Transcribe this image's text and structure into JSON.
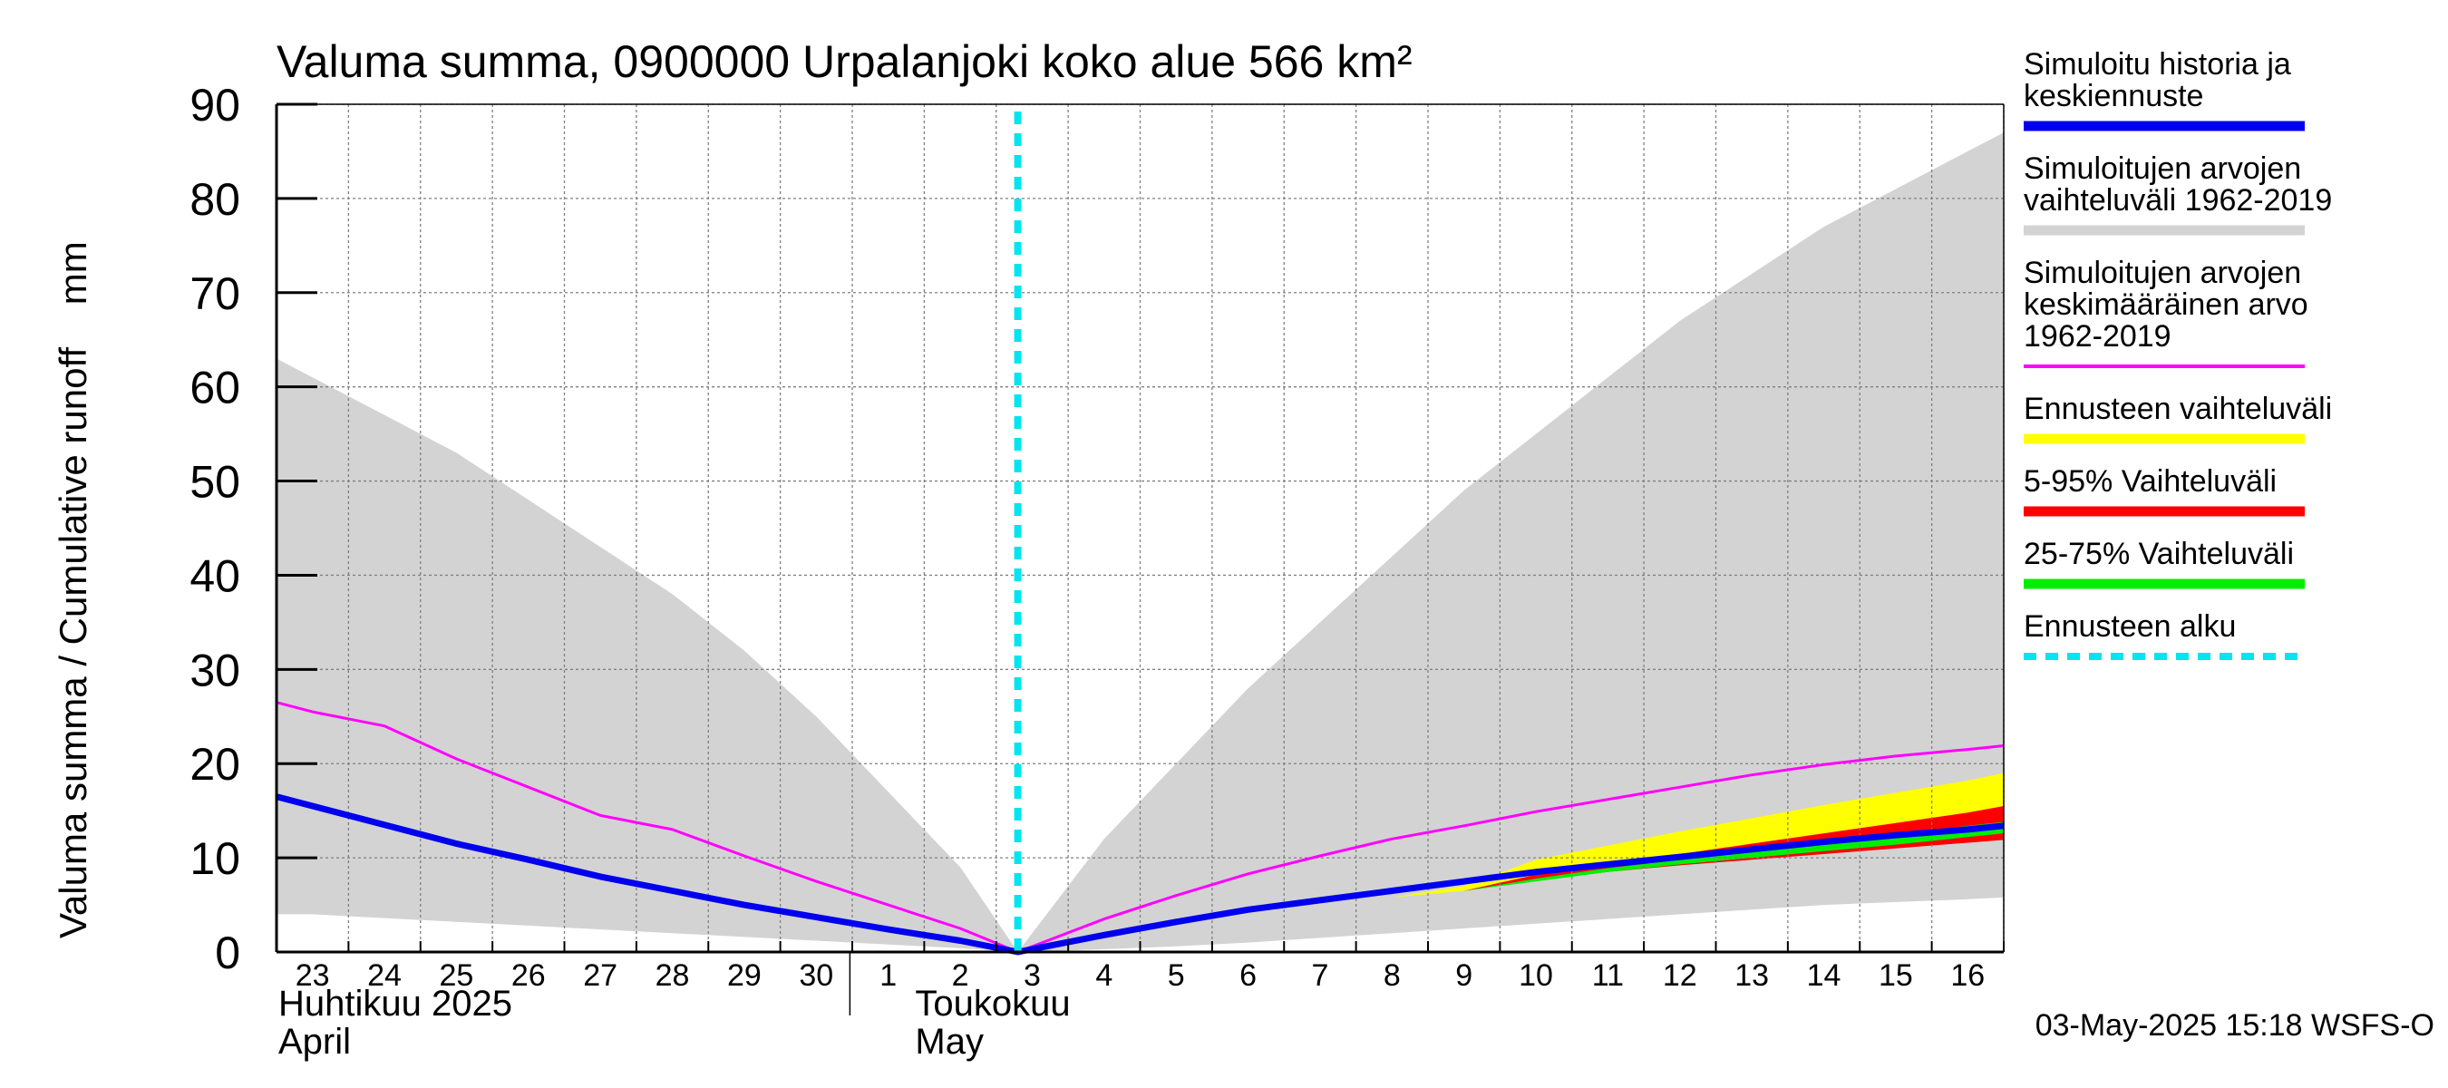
{
  "chart_data": {
    "type": "area",
    "title": "Valuma summa, 0900000 Urpalanjoki koko alue 566 km²",
    "ylabel": "Valuma summa / Cumulative runoff    mm",
    "ylim": [
      0,
      90
    ],
    "yticks": [
      0,
      10,
      20,
      30,
      40,
      50,
      60,
      70,
      80,
      90
    ],
    "xlim": [
      -0.5,
      23.5
    ],
    "x_tick_labels": [
      "23",
      "24",
      "25",
      "26",
      "27",
      "28",
      "29",
      "30",
      "1",
      "2",
      "3",
      "4",
      "5",
      "6",
      "7",
      "8",
      "9",
      "10",
      "11",
      "12",
      "13",
      "14",
      "15",
      "16"
    ],
    "month_labels": [
      {
        "fi": "Huhtikuu  2025",
        "en": "April",
        "start_day": 0
      },
      {
        "fi": "Toukokuu",
        "en": "May",
        "start_day": 9
      }
    ],
    "forecast_start_x": 9.8,
    "timestamp": "03-May-2025 15:18 WSFS-O",
    "grid": true,
    "series": [
      {
        "name": "Simuloitujen arvojen vaihteluväli 1962-2019",
        "kind": "band",
        "color": "#d3d3d3",
        "x": [
          -0.5,
          0,
          1,
          2,
          3,
          4,
          5,
          6,
          7,
          8,
          9,
          9.8,
          11,
          12,
          13,
          14,
          15,
          16,
          17,
          18,
          19,
          20,
          21,
          22,
          23,
          23.5
        ],
        "upper": [
          63,
          61,
          57,
          53,
          48,
          43,
          38,
          32,
          25,
          17,
          9,
          0,
          12,
          20,
          28,
          35,
          42,
          49,
          55,
          61,
          67,
          72,
          77,
          81,
          85,
          87
        ],
        "lower": [
          4,
          4,
          3.6,
          3.2,
          2.8,
          2.4,
          2,
          1.6,
          1.2,
          0.8,
          0.4,
          0,
          0.3,
          0.6,
          1,
          1.5,
          2,
          2.5,
          3,
          3.5,
          4,
          4.5,
          5,
          5.3,
          5.6,
          5.8
        ]
      },
      {
        "name": "Ennusteen vaihteluväli",
        "kind": "band",
        "color": "#ffff00",
        "x": [
          15,
          16,
          17,
          18,
          19,
          20,
          21,
          22,
          23,
          23.5
        ],
        "upper": [
          5.8,
          7,
          9.8,
          11.3,
          12.8,
          14.2,
          15.6,
          16.9,
          18.2,
          19
        ],
        "lower": [
          5.8,
          6.5,
          8,
          8.8,
          9.5,
          10.1,
          10.7,
          11.3,
          11.8,
          12
        ]
      },
      {
        "name": "5-95% Vaihteluväli",
        "kind": "band",
        "color": "#ff0000",
        "x": [
          16,
          17,
          18,
          19,
          20,
          21,
          22,
          23,
          23.5
        ],
        "upper": [
          6.5,
          8.2,
          9.3,
          10.4,
          11.5,
          12.6,
          13.7,
          14.8,
          15.5
        ],
        "lower": [
          6.5,
          7.6,
          8.5,
          9.2,
          9.8,
          10.4,
          11,
          11.6,
          11.9
        ]
      },
      {
        "name": "25-75% Vaihteluväli",
        "kind": "band",
        "color": "#00ee00",
        "x": [
          16,
          17,
          18,
          19,
          20,
          21,
          22,
          23,
          23.5
        ],
        "upper": [
          6.5,
          7.8,
          8.9,
          9.8,
          10.7,
          11.6,
          12.5,
          13.4,
          13.8
        ],
        "lower": [
          6.5,
          7.5,
          8.5,
          9.3,
          10,
          10.7,
          11.4,
          12.2,
          12.6
        ]
      },
      {
        "name": "Simuloitujen arvojen keskimääräinen arvo 1962-2019",
        "kind": "line",
        "color": "#ff00ff",
        "width": 3,
        "x": [
          -0.5,
          0,
          1,
          2,
          3,
          4,
          5,
          6,
          7,
          8,
          9,
          9.8,
          11,
          12,
          13,
          14,
          15,
          16,
          17,
          18,
          19,
          20,
          21,
          22,
          23,
          23.5
        ],
        "values": [
          26.5,
          25.5,
          24,
          20.5,
          17.5,
          14.5,
          13,
          10.2,
          7.5,
          5,
          2.5,
          0,
          3.5,
          6,
          8.3,
          10.2,
          12,
          13.4,
          14.9,
          16.2,
          17.5,
          18.8,
          19.9,
          20.8,
          21.5,
          21.9
        ]
      },
      {
        "name": "Simuloitu historia ja keskiennuste",
        "kind": "line",
        "color": "#0000ee",
        "width": 7,
        "x": [
          -0.5,
          0,
          1,
          2,
          3,
          4,
          5,
          6,
          7,
          8,
          9,
          9.8,
          11,
          12,
          13,
          14,
          15,
          16,
          17,
          18,
          19,
          20,
          21,
          22,
          23,
          23.5
        ],
        "values": [
          16.5,
          15.5,
          13.5,
          11.5,
          9.8,
          8,
          6.5,
          5,
          3.7,
          2.4,
          1.2,
          0,
          1.8,
          3.2,
          4.5,
          5.5,
          6.5,
          7.5,
          8.5,
          9.3,
          10.1,
          10.9,
          11.7,
          12.4,
          13,
          13.4
        ]
      }
    ],
    "legend": {
      "placement": "right",
      "entries": [
        {
          "lines": [
            "Simuloitu historia ja",
            "keskiennuste"
          ],
          "color": "#0000ee",
          "style": "solid"
        },
        {
          "lines": [
            "Simuloitujen arvojen",
            "vaihteluväli 1962-2019"
          ],
          "color": "#d3d3d3",
          "style": "solid"
        },
        {
          "lines": [
            "Simuloitujen arvojen",
            "keskimääräinen arvo",
            "   1962-2019"
          ],
          "color": "#ff00ff",
          "style": "thin"
        },
        {
          "lines": [
            "Ennusteen vaihteluväli"
          ],
          "color": "#ffff00",
          "style": "solid"
        },
        {
          "lines": [
            "5-95% Vaihteluväli"
          ],
          "color": "#ff0000",
          "style": "solid"
        },
        {
          "lines": [
            "25-75% Vaihteluväli"
          ],
          "color": "#00ee00",
          "style": "solid"
        },
        {
          "lines": [
            "Ennusteen alku"
          ],
          "color": "#00e5ee",
          "style": "dashed"
        }
      ]
    }
  }
}
